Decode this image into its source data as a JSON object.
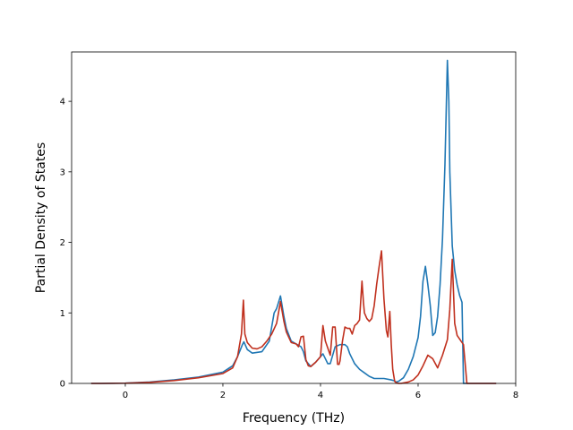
{
  "chart_data": {
    "type": "line",
    "title": "",
    "xlabel": "Frequency (THz)",
    "ylabel": "Partial Density of States",
    "xlim": [
      -1.1,
      8.0
    ],
    "ylim": [
      0,
      4.7
    ],
    "xticks": [
      0,
      2,
      4,
      6,
      8
    ],
    "xtick_labels": [
      "0",
      "2",
      "4",
      "6",
      "8"
    ],
    "yticks": [
      0,
      1,
      2,
      3,
      4
    ],
    "ytick_labels": [
      "0",
      "1",
      "2",
      "3",
      "4"
    ],
    "grid": false,
    "legend": "none",
    "series": [
      {
        "color": "#1f77b4",
        "x": [
          -0.7,
          -0.5,
          0,
          0.5,
          1.0,
          1.5,
          2.0,
          2.2,
          2.3,
          2.4,
          2.43,
          2.5,
          2.6,
          2.8,
          2.95,
          3.0,
          3.05,
          3.1,
          3.18,
          3.25,
          3.3,
          3.4,
          3.5,
          3.6,
          3.65,
          3.7,
          3.75,
          3.8,
          3.9,
          4.0,
          4.05,
          4.1,
          4.15,
          4.2,
          4.3,
          4.4,
          4.5,
          4.55,
          4.6,
          4.7,
          4.8,
          4.9,
          5.0,
          5.1,
          5.3,
          5.45,
          5.5,
          5.55,
          5.6,
          5.7,
          5.8,
          5.9,
          6.0,
          6.05,
          6.1,
          6.15,
          6.2,
          6.25,
          6.3,
          6.35,
          6.4,
          6.45,
          6.5,
          6.55,
          6.6,
          6.63,
          6.65,
          6.7,
          6.75,
          6.8,
          6.85,
          6.9,
          6.93,
          7.0,
          7.2,
          7.4,
          7.6
        ],
        "y": [
          0,
          0,
          0.004,
          0.02,
          0.05,
          0.09,
          0.16,
          0.25,
          0.38,
          0.55,
          0.59,
          0.48,
          0.43,
          0.45,
          0.6,
          0.8,
          1.0,
          1.06,
          1.24,
          0.95,
          0.78,
          0.6,
          0.56,
          0.52,
          0.45,
          0.32,
          0.28,
          0.24,
          0.3,
          0.38,
          0.42,
          0.35,
          0.28,
          0.28,
          0.52,
          0.55,
          0.55,
          0.52,
          0.42,
          0.28,
          0.2,
          0.15,
          0.1,
          0.07,
          0.07,
          0.05,
          0.04,
          0.02,
          0.03,
          0.08,
          0.2,
          0.38,
          0.65,
          0.95,
          1.45,
          1.66,
          1.4,
          1.1,
          0.68,
          0.72,
          0.95,
          1.4,
          2.05,
          3.1,
          4.58,
          4.0,
          3.0,
          1.95,
          1.6,
          1.4,
          1.25,
          1.15,
          0,
          0,
          0,
          0,
          0
        ]
      },
      {
        "color": "#c0301e",
        "x": [
          -0.7,
          -0.5,
          0,
          0.5,
          1.0,
          1.5,
          2.0,
          2.2,
          2.3,
          2.38,
          2.42,
          2.45,
          2.5,
          2.6,
          2.7,
          2.8,
          2.9,
          3.0,
          3.1,
          3.18,
          3.25,
          3.3,
          3.4,
          3.5,
          3.55,
          3.6,
          3.65,
          3.7,
          3.75,
          3.8,
          3.9,
          4.0,
          4.05,
          4.1,
          4.15,
          4.2,
          4.25,
          4.3,
          4.35,
          4.38,
          4.4,
          4.45,
          4.5,
          4.55,
          4.6,
          4.65,
          4.7,
          4.75,
          4.8,
          4.85,
          4.88,
          4.9,
          4.95,
          5.0,
          5.05,
          5.1,
          5.15,
          5.2,
          5.25,
          5.3,
          5.35,
          5.38,
          5.42,
          5.45,
          5.48,
          5.52,
          5.55,
          5.6,
          5.65,
          5.8,
          5.9,
          6.0,
          6.1,
          6.2,
          6.3,
          6.4,
          6.5,
          6.6,
          6.65,
          6.7,
          6.75,
          6.8,
          6.9,
          6.93,
          7.0,
          7.2,
          7.4,
          7.6
        ],
        "y": [
          0,
          0,
          0.003,
          0.015,
          0.04,
          0.08,
          0.14,
          0.22,
          0.38,
          0.7,
          1.18,
          0.7,
          0.58,
          0.5,
          0.49,
          0.52,
          0.6,
          0.7,
          0.85,
          1.16,
          0.88,
          0.73,
          0.58,
          0.56,
          0.52,
          0.66,
          0.67,
          0.34,
          0.25,
          0.24,
          0.3,
          0.38,
          0.82,
          0.6,
          0.5,
          0.4,
          0.8,
          0.8,
          0.27,
          0.27,
          0.32,
          0.6,
          0.8,
          0.78,
          0.78,
          0.7,
          0.82,
          0.85,
          0.9,
          1.45,
          1.15,
          1.0,
          0.92,
          0.88,
          0.92,
          1.1,
          1.4,
          1.65,
          1.88,
          1.2,
          0.75,
          0.66,
          1.02,
          0.55,
          0.2,
          0.03,
          0.01,
          0,
          0,
          0.02,
          0.05,
          0.12,
          0.25,
          0.4,
          0.35,
          0.22,
          0.4,
          0.62,
          1.05,
          1.76,
          0.85,
          0.68,
          0.58,
          0.55,
          0,
          0,
          0,
          0
        ]
      }
    ]
  }
}
